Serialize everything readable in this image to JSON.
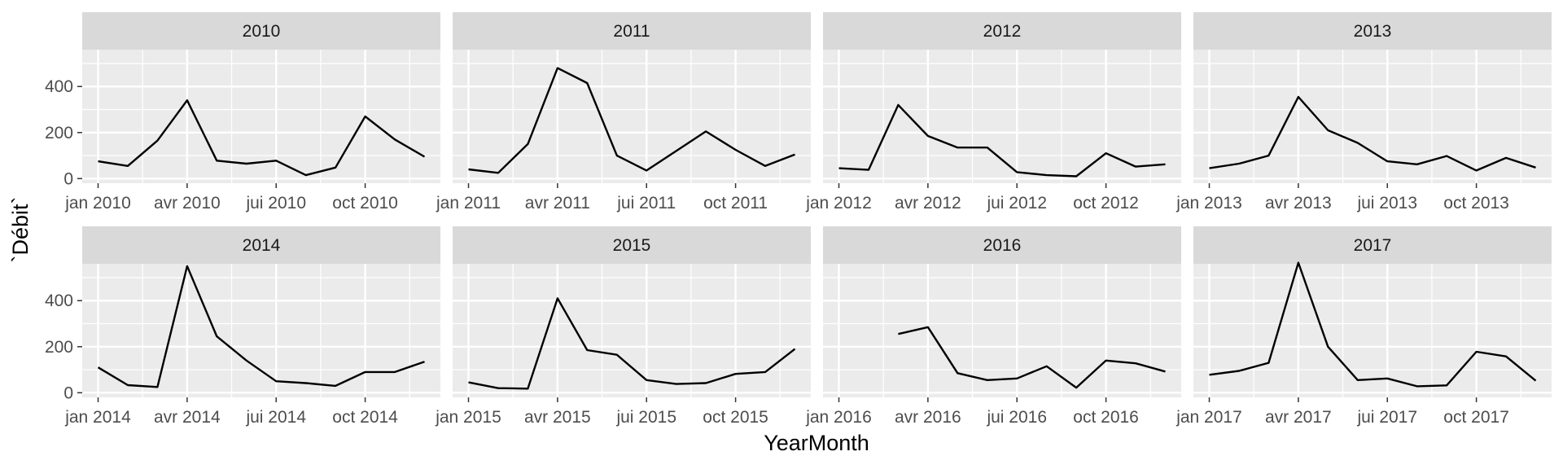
{
  "chart_data": {
    "type": "line",
    "layout": "facet_wrap",
    "xlabel": "YearMonth",
    "ylabel": "`Débit`",
    "ylim": [
      -20,
      560
    ],
    "yticks": [
      0,
      200,
      400
    ],
    "grid": true,
    "colors": {
      "panel_bg": "#ebebeb",
      "strip_bg": "#d9d9d9",
      "grid": "#ffffff",
      "line": "#000000",
      "tick": "#333333"
    },
    "panels": [
      {
        "year": "2010",
        "tick_labels": [
          "jan 2010",
          "avr 2010",
          "jui 2010",
          "oct 2010"
        ],
        "values": [
          75,
          55,
          165,
          340,
          78,
          65,
          78,
          15,
          48,
          270,
          170,
          95
        ]
      },
      {
        "year": "2011",
        "tick_labels": [
          "jan 2011",
          "avr 2011",
          "jui 2011",
          "oct 2011"
        ],
        "values": [
          40,
          25,
          150,
          480,
          415,
          100,
          35,
          120,
          205,
          125,
          55,
          105
        ]
      },
      {
        "year": "2012",
        "tick_labels": [
          "jan 2012",
          "avr 2012",
          "jui 2012",
          "oct 2012"
        ],
        "values": [
          45,
          38,
          320,
          185,
          135,
          135,
          28,
          15,
          10,
          110,
          52,
          62
        ]
      },
      {
        "year": "2013",
        "tick_labels": [
          "jan 2013",
          "avr 2013",
          "jui 2013",
          "oct 2013"
        ],
        "values": [
          45,
          65,
          100,
          355,
          210,
          155,
          75,
          62,
          98,
          35,
          90,
          48
        ]
      },
      {
        "year": "2014",
        "tick_labels": [
          "jan 2014",
          "avr 2014",
          "jui 2014",
          "oct 2014"
        ],
        "values": [
          110,
          33,
          25,
          550,
          245,
          140,
          50,
          42,
          30,
          90,
          90,
          135
        ]
      },
      {
        "year": "2015",
        "tick_labels": [
          "jan 2015",
          "avr 2015",
          "jui 2015",
          "oct 2015"
        ],
        "values": [
          45,
          20,
          18,
          410,
          185,
          165,
          55,
          38,
          42,
          82,
          90,
          190
        ]
      },
      {
        "year": "2016",
        "tick_labels": [
          "jan 2016",
          "avr 2016",
          "jui 2016",
          "oct 2016"
        ],
        "values": [
          null,
          null,
          255,
          285,
          85,
          55,
          62,
          115,
          22,
          140,
          128,
          92
        ]
      },
      {
        "year": "2017",
        "tick_labels": [
          "jan 2017",
          "avr 2017",
          "jui 2017",
          "oct 2017"
        ],
        "values": [
          78,
          95,
          130,
          565,
          200,
          55,
          62,
          28,
          32,
          178,
          158,
          52
        ]
      }
    ]
  }
}
